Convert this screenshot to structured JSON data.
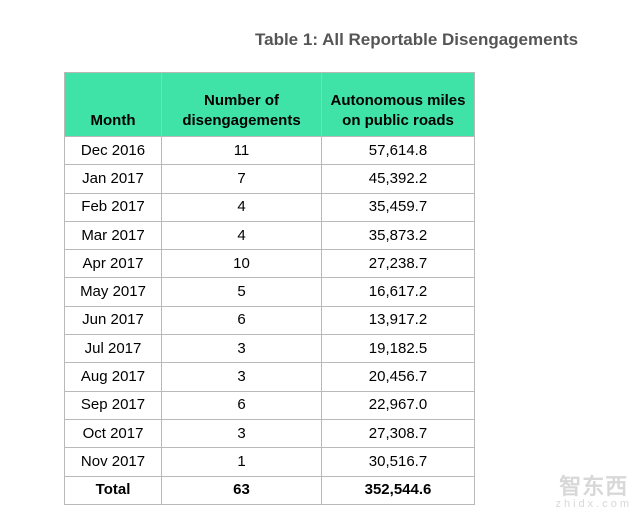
{
  "table": {
    "caption": "Table 1:  All Reportable Disengagements",
    "headers": {
      "month": "Month",
      "disengagements": "Number of disengagements",
      "miles": "Autonomous miles on public roads"
    },
    "rows": [
      {
        "month": "Dec 2016",
        "disengagements": "11",
        "miles": "57,614.8"
      },
      {
        "month": "Jan 2017",
        "disengagements": "7",
        "miles": "45,392.2"
      },
      {
        "month": "Feb 2017",
        "disengagements": "4",
        "miles": "35,459.7"
      },
      {
        "month": "Mar 2017",
        "disengagements": "4",
        "miles": "35,873.2"
      },
      {
        "month": "Apr 2017",
        "disengagements": "10",
        "miles": "27,238.7"
      },
      {
        "month": "May 2017",
        "disengagements": "5",
        "miles": "16,617.2"
      },
      {
        "month": "Jun 2017",
        "disengagements": "6",
        "miles": "13,917.2"
      },
      {
        "month": "Jul 2017",
        "disengagements": "3",
        "miles": "19,182.5"
      },
      {
        "month": "Aug 2017",
        "disengagements": "3",
        "miles": "20,456.7"
      },
      {
        "month": "Sep 2017",
        "disengagements": "6",
        "miles": "22,967.0"
      },
      {
        "month": "Oct 2017",
        "disengagements": "3",
        "miles": "27,308.7"
      },
      {
        "month": "Nov 2017",
        "disengagements": "1",
        "miles": "30,516.7"
      }
    ],
    "total": {
      "label": "Total",
      "disengagements": "63",
      "miles": "352,544.6"
    },
    "header_color": "#3fe3a8"
  },
  "watermark": {
    "logo": "智东西",
    "url": "zhidx.com"
  }
}
